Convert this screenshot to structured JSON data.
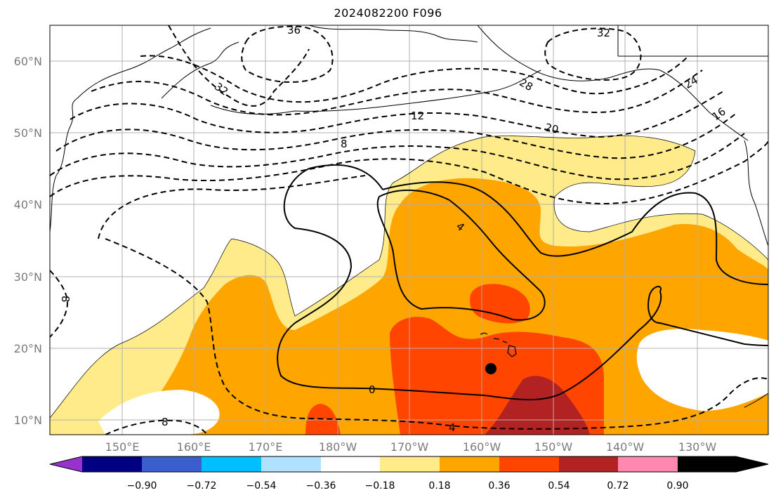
{
  "title": "2024082200 F096",
  "map": {
    "lat_labels": [
      "60°N",
      "50°N",
      "40°N",
      "30°N",
      "20°N",
      "10°N"
    ],
    "lon_labels": [
      "150°E",
      "160°E",
      "170°E",
      "180°W",
      "170°W",
      "160°W",
      "150°W",
      "140°W",
      "130°W"
    ],
    "contour_labels": {
      "neg36": "36",
      "neg32_west": "32",
      "neg32_east": "32",
      "neg28": "28",
      "neg24": "24",
      "neg20": "20",
      "neg16": "16",
      "neg12": "12",
      "neg8_north": "8",
      "neg8_west": "8",
      "neg8_south": "8",
      "neg4": "4",
      "zero": "0",
      "pos4": "4"
    },
    "marker": "storm-position-dot",
    "colors": {
      "band_018_036": "#ffeb8a",
      "band_036_054": "#ffa500",
      "band_054_072": "#ff4500",
      "band_072_090": "#b22222"
    }
  },
  "colorbar": {
    "ticks": [
      "−0.90",
      "−0.72",
      "−0.54",
      "−0.36",
      "−0.18",
      "0.18",
      "0.36",
      "0.54",
      "0.72",
      "0.90"
    ],
    "colors": [
      "#9932cc",
      "#000080",
      "#3a5fcd",
      "#00bfff",
      "#b0e2ff",
      "#ffffff",
      "#ffeb8a",
      "#ffa500",
      "#ff4500",
      "#b22222",
      "#ff88b0"
    ]
  }
}
